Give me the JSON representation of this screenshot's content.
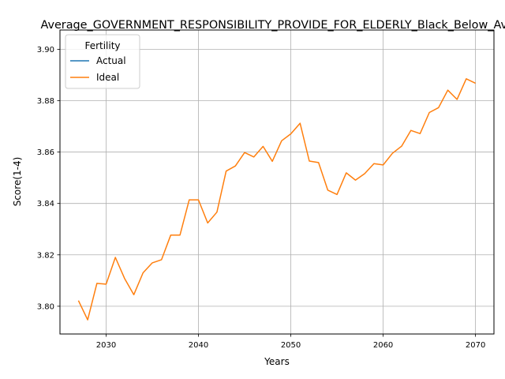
{
  "chart_data": {
    "type": "line",
    "title": "Average_GOVERNMENT_RESPONSIBILITY_PROVIDE_FOR_ELDERLY_Black_Below_Average",
    "xlabel": "Years",
    "ylabel": "Score(1-4)",
    "xlim": [
      2025,
      2072
    ],
    "ylim": [
      3.7892,
      3.9075
    ],
    "xticks": [
      2030,
      2040,
      2050,
      2060,
      2070
    ],
    "yticks": [
      3.8,
      3.82,
      3.84,
      3.86,
      3.88,
      3.9
    ],
    "ytick_labels": [
      "3.80",
      "3.82",
      "3.84",
      "3.86",
      "3.88",
      "3.90"
    ],
    "grid": true,
    "legend": {
      "title": "Fertility",
      "placement": "top-left"
    },
    "series": [
      {
        "name": "Actual",
        "color": "#1f77b4",
        "x": [],
        "y": []
      },
      {
        "name": "Ideal",
        "color": "#ff7f0e",
        "x": [
          2027,
          2028,
          2029,
          2030,
          2031,
          2032,
          2033,
          2034,
          2035,
          2036,
          2037,
          2038,
          2039,
          2040,
          2041,
          2042,
          2043,
          2044,
          2045,
          2046,
          2047,
          2048,
          2049,
          2050,
          2051,
          2052,
          2053,
          2054,
          2055,
          2056,
          2057,
          2058,
          2059,
          2060,
          2061,
          2062,
          2063,
          2064,
          2065,
          2066,
          2067,
          2068,
          2069,
          2070
        ],
        "y": [
          3.8022,
          3.7947,
          3.8089,
          3.8086,
          3.819,
          3.8108,
          3.8045,
          3.813,
          3.8169,
          3.8181,
          3.8277,
          3.8277,
          3.8414,
          3.8414,
          3.8324,
          3.8366,
          3.8526,
          3.8546,
          3.8598,
          3.8581,
          3.8622,
          3.8564,
          3.8644,
          3.8671,
          3.8712,
          3.8565,
          3.8559,
          3.8452,
          3.8435,
          3.8519,
          3.8491,
          3.8516,
          3.8555,
          3.855,
          3.8595,
          3.8623,
          3.8684,
          3.8672,
          3.8754,
          3.8773,
          3.8841,
          3.8805,
          3.8885,
          3.8868
        ]
      }
    ]
  }
}
